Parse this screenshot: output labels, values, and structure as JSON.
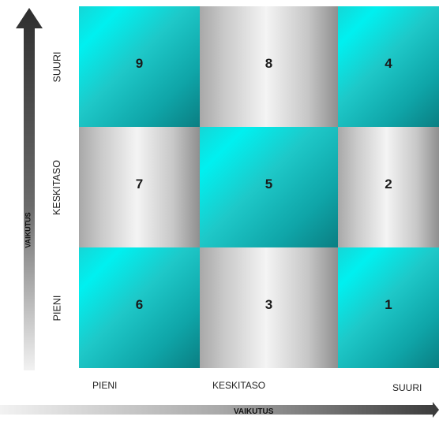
{
  "y_axis": {
    "title": "VAIKUTUS",
    "levels": [
      "SUURI",
      "KESKITASO",
      "PIENI"
    ]
  },
  "x_axis": {
    "title": "VAIKUTUS",
    "levels": [
      "PIENI",
      "KESKITASO",
      "SUURI"
    ]
  },
  "matrix": {
    "rows": [
      {
        "cells": [
          {
            "value": "9",
            "color": "teal"
          },
          {
            "value": "8",
            "color": "gray"
          },
          {
            "value": "4",
            "color": "teal"
          }
        ]
      },
      {
        "cells": [
          {
            "value": "7",
            "color": "gray"
          },
          {
            "value": "5",
            "color": "teal"
          },
          {
            "value": "2",
            "color": "gray"
          }
        ]
      },
      {
        "cells": [
          {
            "value": "6",
            "color": "teal"
          },
          {
            "value": "3",
            "color": "gray"
          },
          {
            "value": "1",
            "color": "teal"
          }
        ]
      }
    ]
  },
  "colors": {
    "teal": "#00e5e5",
    "teal_dark": "#0a7e82",
    "gray_light": "#f4f4f4",
    "gray_dark": "#8f8f8f",
    "arrow": "#3a3a3a"
  }
}
